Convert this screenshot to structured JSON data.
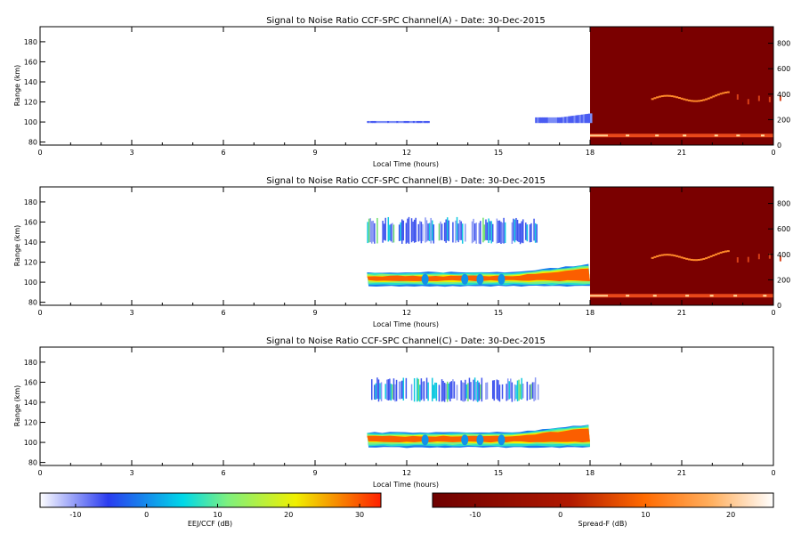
{
  "chart_data": [
    {
      "type": "heatmap",
      "title": "Signal to Noise Ratio CCF-SPC Channel(A) - Date: 30-Dec-2015",
      "xlabel": "Local Time (hours)",
      "ylabel": "Range (km)",
      "xlim": [
        0,
        24
      ],
      "ylim": [
        77,
        195
      ],
      "xticks": [
        "0",
        "3",
        "6",
        "9",
        "12",
        "15",
        "18",
        "21",
        "0"
      ],
      "yticks": [
        "80",
        "100",
        "120",
        "140",
        "160",
        "180"
      ],
      "ylim_right": [
        0,
        930
      ],
      "yticks_right": [
        "0",
        "200",
        "400",
        "600",
        "800"
      ],
      "spread_f_region": [
        18,
        24
      ],
      "features": [
        {
          "name": "EEJ",
          "t0": 10.7,
          "t1": 12.7,
          "r0": 99,
          "r1": 104,
          "snr_db": -8
        },
        {
          "name": "EEJ",
          "t0": 16.2,
          "t1": 18.0,
          "r0": 99,
          "r1": 113,
          "snr_db": -7
        },
        {
          "name": "Spread-F",
          "t0": 18.0,
          "t1": 24.0,
          "range_km": 75,
          "snr_db": 8
        },
        {
          "name": "Spread-F",
          "t0": 20.0,
          "t1": 22.5,
          "range_km": 360,
          "snr_db": 6
        }
      ]
    },
    {
      "type": "heatmap",
      "title": "Signal to Noise Ratio CCF-SPC Channel(B) - Date: 30-Dec-2015",
      "xlabel": "Local Time (hours)",
      "ylabel": "Range (km)",
      "xlim": [
        0,
        24
      ],
      "ylim": [
        77,
        195
      ],
      "xticks": [
        "0",
        "3",
        "6",
        "9",
        "12",
        "15",
        "18",
        "21",
        "0"
      ],
      "yticks": [
        "80",
        "100",
        "120",
        "140",
        "160",
        "180"
      ],
      "ylim_right": [
        0,
        930
      ],
      "yticks_right": [
        "0",
        "200",
        "400",
        "600",
        "800"
      ],
      "spread_f_region": [
        18,
        24
      ],
      "features": [
        {
          "name": "EEJ",
          "t0": 10.7,
          "t1": 18.0,
          "r0": 96,
          "r1": 110,
          "snr_db": 25
        },
        {
          "name": "150 km echo",
          "t0": 10.7,
          "t1": 16.3,
          "r0": 138,
          "r1": 165,
          "snr_db": 2
        },
        {
          "name": "Spread-F",
          "t0": 18.0,
          "t1": 24.0,
          "range_km": 75,
          "snr_db": 8
        },
        {
          "name": "Spread-F",
          "t0": 20.0,
          "t1": 22.5,
          "range_km": 370,
          "snr_db": 6
        }
      ]
    },
    {
      "type": "heatmap",
      "title": "Signal to Noise Ratio CCF-SPC Channel(C) - Date: 30-Dec-2015",
      "xlabel": "Local Time (hours)",
      "ylabel": "Range (km)",
      "xlim": [
        0,
        24
      ],
      "ylim": [
        77,
        195
      ],
      "xticks": [
        "0",
        "3",
        "6",
        "9",
        "12",
        "15",
        "18",
        "21",
        "0"
      ],
      "yticks": [
        "80",
        "100",
        "120",
        "140",
        "160",
        "180"
      ],
      "features": [
        {
          "name": "EEJ",
          "t0": 10.7,
          "t1": 18.0,
          "r0": 95,
          "r1": 110,
          "snr_db": 25
        },
        {
          "name": "150 km echo",
          "t0": 10.7,
          "t1": 16.3,
          "r0": 140,
          "r1": 165,
          "snr_db": 2
        }
      ]
    }
  ],
  "colorbars": [
    {
      "label": "EEJ/CCF (dB)",
      "range": [
        -15,
        33
      ],
      "ticks": [
        "-10",
        "0",
        "10",
        "20",
        "30"
      ],
      "colors": [
        "#ffffff",
        "#2a3cf0",
        "#00d8e8",
        "#f0f000",
        "#ff2000"
      ]
    },
    {
      "label": "Spread-F (dB)",
      "range": [
        -15,
        25
      ],
      "ticks": [
        "-10",
        "0",
        "10",
        "20"
      ],
      "colors": [
        "#6e0000",
        "#a81000",
        "#ff6a00",
        "#ffb060",
        "#ffffff"
      ]
    }
  ],
  "colors": {
    "spread_f_background": "#7a0000",
    "eej_core": "#ff2a00",
    "eej_edge": "#00b8d8",
    "echo_150": "#3050f0"
  }
}
